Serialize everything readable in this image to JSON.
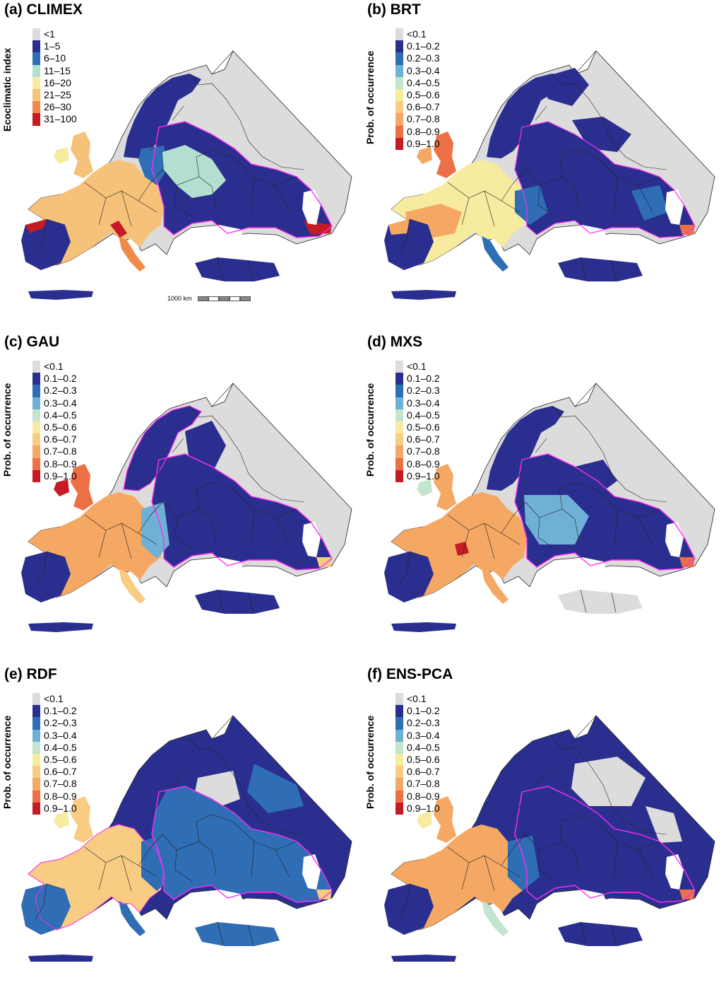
{
  "panels": [
    {
      "title": "(a) CLIMEX",
      "legend_title": "Ecoclimatic index",
      "legend": [
        {
          "label": "<1",
          "color": "#dcdcdc"
        },
        {
          "label": "1–5",
          "color": "#2a2f8f"
        },
        {
          "label": "6–10",
          "color": "#2f6db5"
        },
        {
          "label": "11–15",
          "color": "#b3dfd0"
        },
        {
          "label": "16–20",
          "color": "#f7eba0"
        },
        {
          "label": "21–25",
          "color": "#f6c27a"
        },
        {
          "label": "26–30",
          "color": "#f08a4b"
        },
        {
          "label": "31–100",
          "color": "#c41b25"
        }
      ],
      "scale_label": "1000 km"
    },
    {
      "title": "(b) BRT",
      "legend_title": "Prob. of occurrence",
      "legend": [
        {
          "label": "<0.1",
          "color": "#dcdcdc"
        },
        {
          "label": "0.1–0.2",
          "color": "#2a2f8f"
        },
        {
          "label": "0.2–0.3",
          "color": "#2f6db5"
        },
        {
          "label": "0.3–0.4",
          "color": "#6fb0d6"
        },
        {
          "label": "0.4–0.5",
          "color": "#c3e5cf"
        },
        {
          "label": "0.5–0.6",
          "color": "#f7eba0"
        },
        {
          "label": "0.6–0.7",
          "color": "#f8cd83"
        },
        {
          "label": "0.7–0.8",
          "color": "#f5a863"
        },
        {
          "label": "0.8–0.9",
          "color": "#ec6f45"
        },
        {
          "label": "0.9–1.0",
          "color": "#c41b25"
        }
      ]
    },
    {
      "title": "(c) GAU",
      "legend_title": "Prob. of occurrence",
      "legend": [
        {
          "label": "<0.1",
          "color": "#dcdcdc"
        },
        {
          "label": "0.1–0.2",
          "color": "#2a2f8f"
        },
        {
          "label": "0.2–0.3",
          "color": "#2f6db5"
        },
        {
          "label": "0.3–0.4",
          "color": "#6fb0d6"
        },
        {
          "label": "0.4–0.5",
          "color": "#c3e5cf"
        },
        {
          "label": "0.5–0.6",
          "color": "#f7eba0"
        },
        {
          "label": "0.6–0.7",
          "color": "#f8cd83"
        },
        {
          "label": "0.7–0.8",
          "color": "#f5a863"
        },
        {
          "label": "0.8–0.9",
          "color": "#ec6f45"
        },
        {
          "label": "0.9–1.0",
          "color": "#c41b25"
        }
      ]
    },
    {
      "title": "(d) MXS",
      "legend_title": "Prob. of occurrence",
      "legend": [
        {
          "label": "<0.1",
          "color": "#dcdcdc"
        },
        {
          "label": "0.1–0.2",
          "color": "#2a2f8f"
        },
        {
          "label": "0.2–0.3",
          "color": "#2f6db5"
        },
        {
          "label": "0.3–0.4",
          "color": "#6fb0d6"
        },
        {
          "label": "0.4–0.5",
          "color": "#c3e5cf"
        },
        {
          "label": "0.5–0.6",
          "color": "#f7eba0"
        },
        {
          "label": "0.6–0.7",
          "color": "#f8cd83"
        },
        {
          "label": "0.7–0.8",
          "color": "#f5a863"
        },
        {
          "label": "0.8–0.9",
          "color": "#ec6f45"
        },
        {
          "label": "0.9–1.0",
          "color": "#c41b25"
        }
      ]
    },
    {
      "title": "(e) RDF",
      "legend_title": "Prob. of occurrence",
      "legend": [
        {
          "label": "<0.1",
          "color": "#dcdcdc"
        },
        {
          "label": "0.1–0.2",
          "color": "#2a2f8f"
        },
        {
          "label": "0.2–0.3",
          "color": "#2f6db5"
        },
        {
          "label": "0.3–0.4",
          "color": "#6fb0d6"
        },
        {
          "label": "0.4–0.5",
          "color": "#c3e5cf"
        },
        {
          "label": "0.5–0.6",
          "color": "#f7eba0"
        },
        {
          "label": "0.6–0.7",
          "color": "#f8cd83"
        },
        {
          "label": "0.7–0.8",
          "color": "#f5a863"
        },
        {
          "label": "0.8–0.9",
          "color": "#ec6f45"
        },
        {
          "label": "0.9–1.0",
          "color": "#c41b25"
        }
      ]
    },
    {
      "title": "(f) ENS-PCA",
      "legend_title": "Prob. of occurrence",
      "legend": [
        {
          "label": "<0.1",
          "color": "#dcdcdc"
        },
        {
          "label": "0.1–0.2",
          "color": "#2a2f8f"
        },
        {
          "label": "0.2–0.3",
          "color": "#2f6db5"
        },
        {
          "label": "0.3–0.4",
          "color": "#6fb0d6"
        },
        {
          "label": "0.4–0.5",
          "color": "#c3e5cf"
        },
        {
          "label": "0.5–0.6",
          "color": "#f7eba0"
        },
        {
          "label": "0.6–0.7",
          "color": "#f8cd83"
        },
        {
          "label": "0.7–0.8",
          "color": "#f5a863"
        },
        {
          "label": "0.8–0.9",
          "color": "#ec6f45"
        },
        {
          "label": "0.9–1.0",
          "color": "#c41b25"
        }
      ]
    }
  ],
  "colors": {
    "no_data": "#dcdcdc",
    "low": "#2a2f8f",
    "warm": "#f5a863",
    "hot": "#c41b25",
    "contour": "#ff2cf0",
    "border": "#222222"
  }
}
